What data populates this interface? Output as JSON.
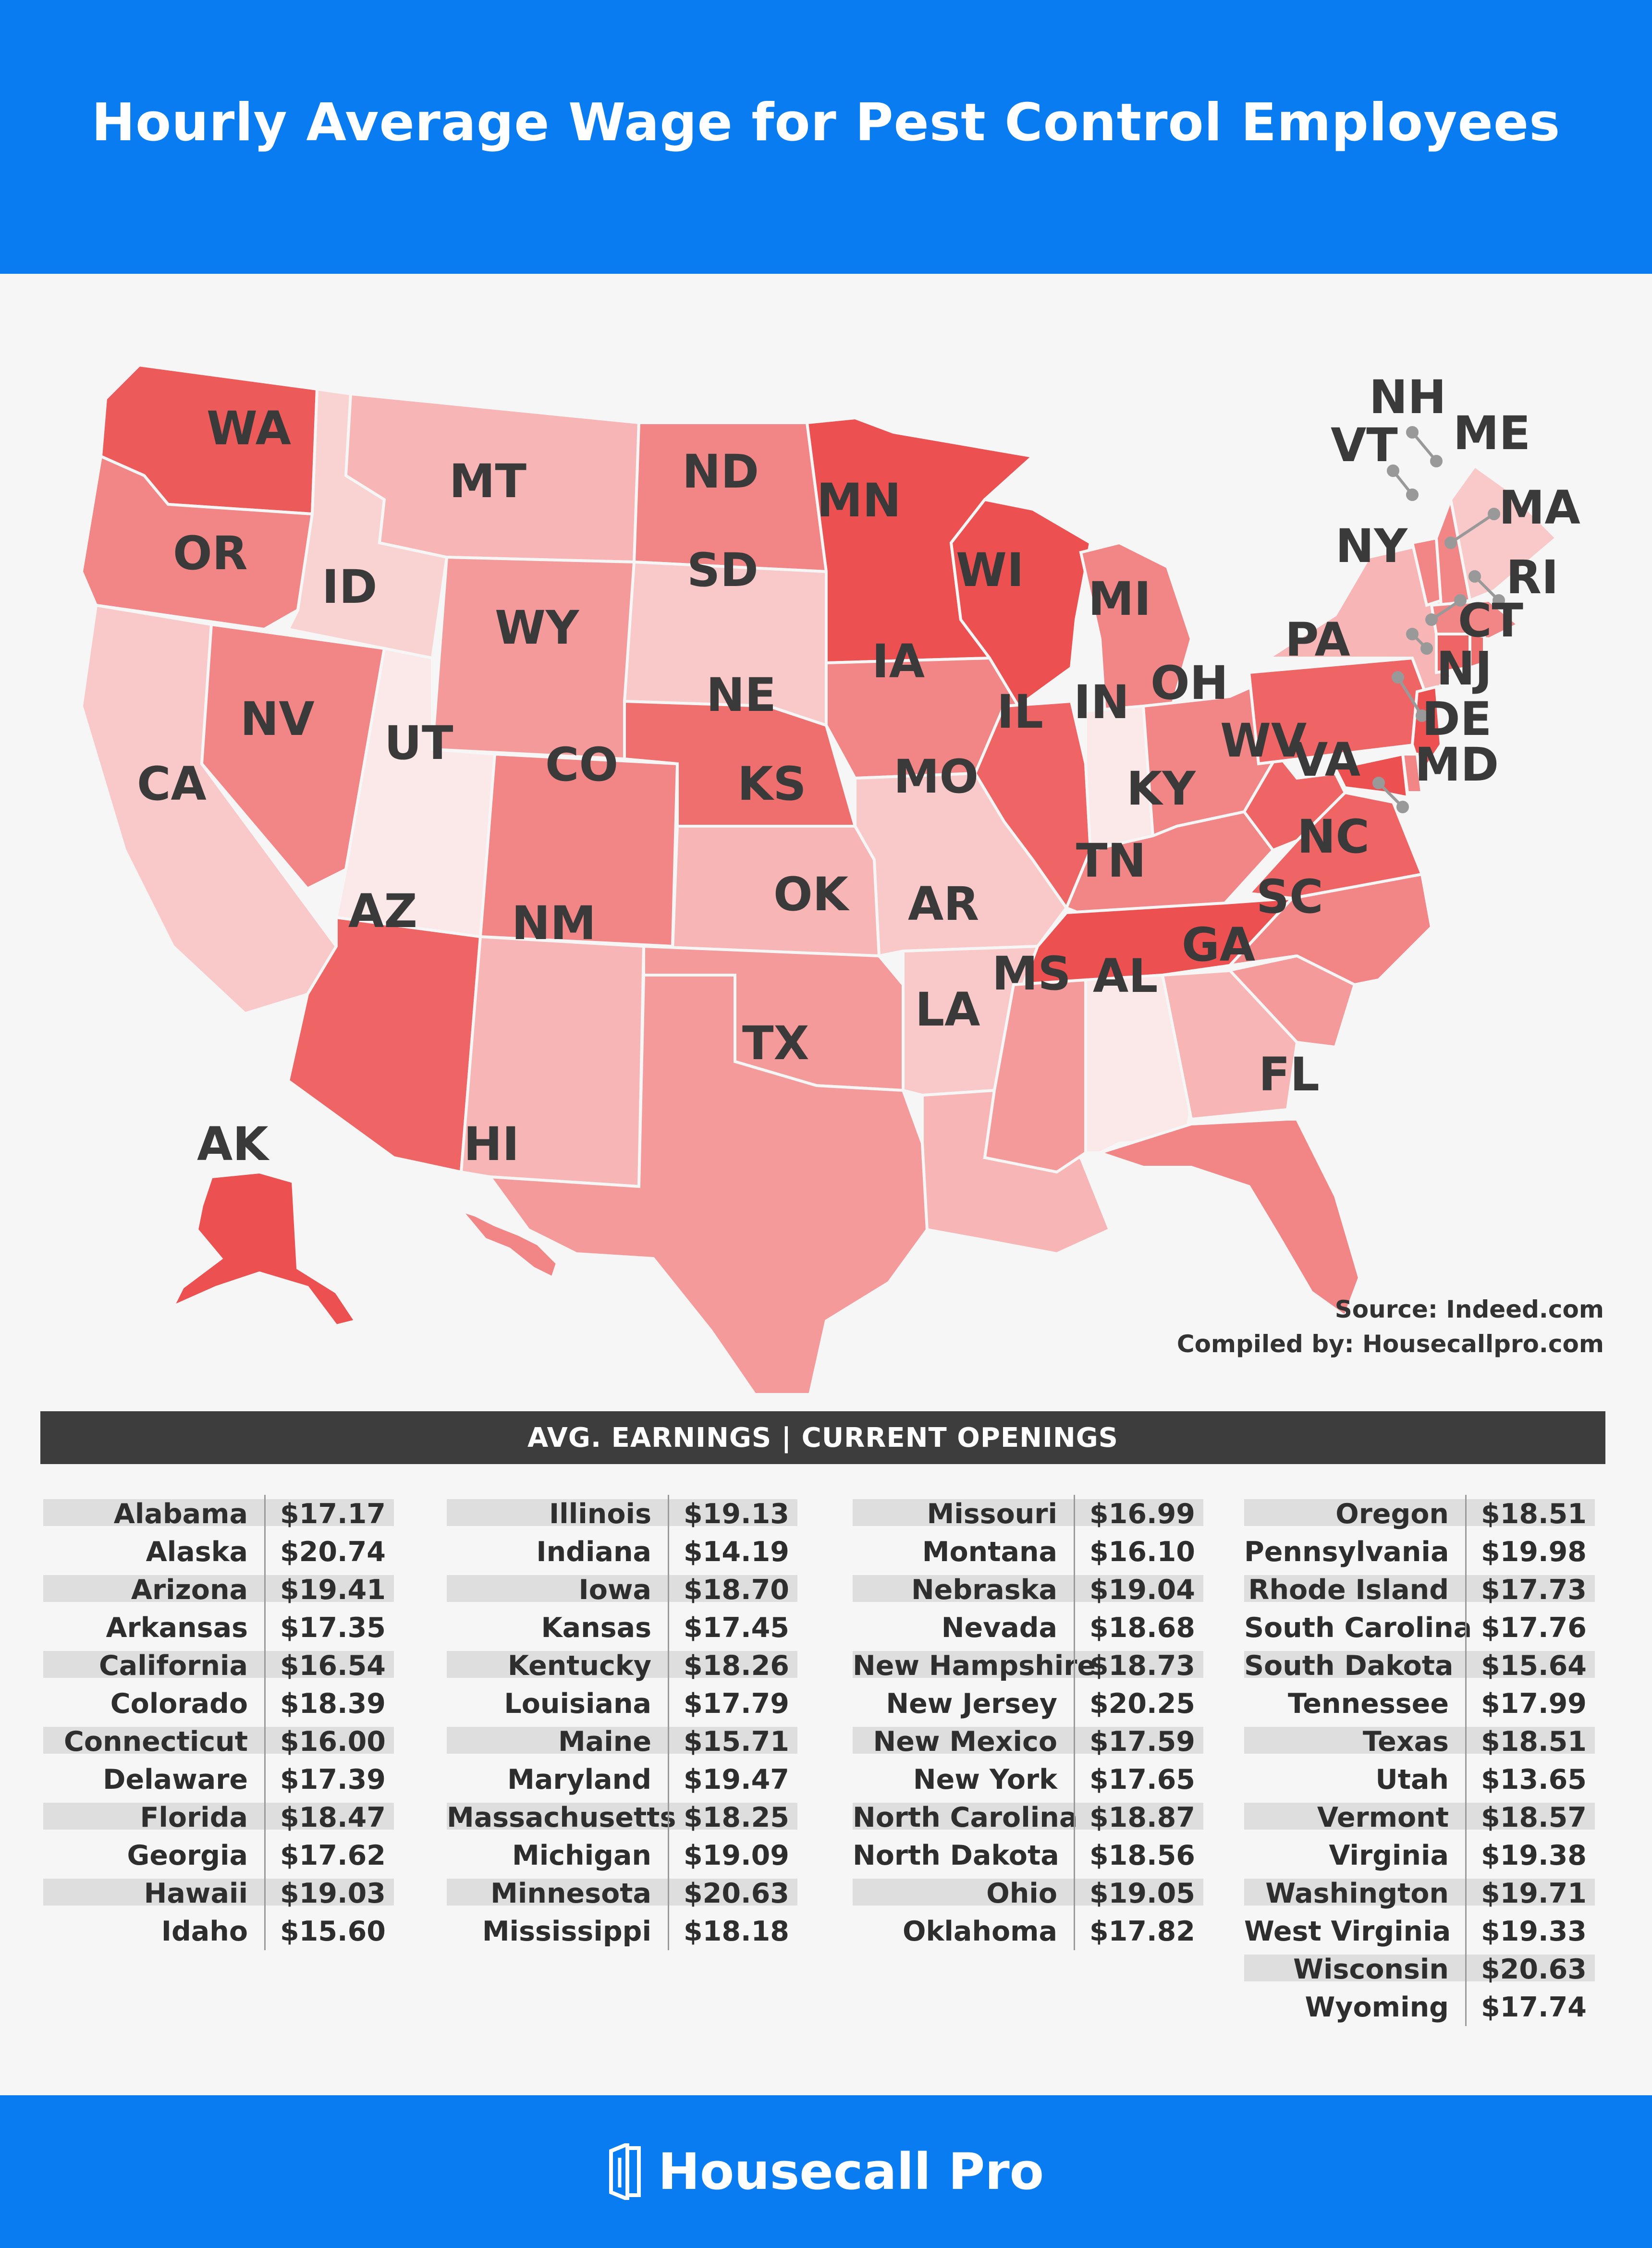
{
  "title": "Hourly Average Wage for Pest Control Employees",
  "map": {
    "labels": {
      "WA": "WA",
      "OR": "OR",
      "CA": "CA",
      "NV": "NV",
      "ID": "ID",
      "MT": "MT",
      "WY": "WY",
      "UT": "UT",
      "AZ": "AZ",
      "CO": "CO",
      "NM": "NM",
      "ND": "ND",
      "SD": "SD",
      "NE": "NE",
      "KS": "KS",
      "OK": "OK",
      "TX": "TX",
      "MN": "MN",
      "IA": "IA",
      "MO": "MO",
      "AR": "AR",
      "LA": "LA",
      "WI": "WI",
      "IL": "IL",
      "MI": "MI",
      "IN": "IN",
      "OH": "OH",
      "KY": "KY",
      "TN": "TN",
      "MS": "MS",
      "AL": "AL",
      "GA": "GA",
      "FL": "FL",
      "SC": "SC",
      "NC": "NC",
      "VA": "VA",
      "WV": "WV",
      "PA": "PA",
      "NY": "NY",
      "VT": "VT",
      "NH": "NH",
      "ME": "ME",
      "MA": "MA",
      "RI": "RI",
      "CT": "CT",
      "NJ": "NJ",
      "DE": "DE",
      "MD": "MD",
      "AK": "AK",
      "HI": "HI"
    },
    "colors": {
      "lightest": "#fbe8e8",
      "light": "#f9c9c9",
      "mid_light": "#f7b5b5",
      "mid": "#f59a9a",
      "mid_dark": "#f28585",
      "dark": "#ef6e6e",
      "darkest": "#ec5050"
    }
  },
  "source": {
    "line1": "Source: Indeed.com",
    "line2": "Compiled by: Housecallpro.com"
  },
  "table": {
    "header": "AVG. EARNINGS | CURRENT OPENINGS",
    "columns": [
      [
        [
          "Alabama",
          "$17.17"
        ],
        [
          "Alaska",
          "$20.74"
        ],
        [
          "Arizona",
          "$19.41"
        ],
        [
          "Arkansas",
          "$17.35"
        ],
        [
          "California",
          "$16.54"
        ],
        [
          "Colorado",
          "$18.39"
        ],
        [
          "Connecticut",
          "$16.00"
        ],
        [
          "Delaware",
          "$17.39"
        ],
        [
          "Florida",
          "$18.47"
        ],
        [
          "Georgia",
          "$17.62"
        ],
        [
          "Hawaii",
          "$19.03"
        ],
        [
          "Idaho",
          "$15.60"
        ]
      ],
      [
        [
          "Illinois",
          "$19.13"
        ],
        [
          "Indiana",
          "$14.19"
        ],
        [
          "Iowa",
          "$18.70"
        ],
        [
          "Kansas",
          "$17.45"
        ],
        [
          "Kentucky",
          "$18.26"
        ],
        [
          "Louisiana",
          "$17.79"
        ],
        [
          "Maine",
          "$15.71"
        ],
        [
          "Maryland",
          "$19.47"
        ],
        [
          "Massachusetts",
          "$18.25"
        ],
        [
          "Michigan",
          "$19.09"
        ],
        [
          "Minnesota",
          "$20.63"
        ],
        [
          "Mississippi",
          "$18.18"
        ]
      ],
      [
        [
          "Missouri",
          "$16.99"
        ],
        [
          "Montana",
          "$16.10"
        ],
        [
          "Nebraska",
          "$19.04"
        ],
        [
          "Nevada",
          "$18.68"
        ],
        [
          "New Hampshire",
          "$18.73"
        ],
        [
          "New Jersey",
          "$20.25"
        ],
        [
          "New Mexico",
          "$17.59"
        ],
        [
          "New York",
          "$17.65"
        ],
        [
          "North Carolina",
          "$18.87"
        ],
        [
          "North Dakota",
          "$18.56"
        ],
        [
          "Ohio",
          "$19.05"
        ],
        [
          "Oklahoma",
          "$17.82"
        ]
      ],
      [
        [
          "Oregon",
          "$18.51"
        ],
        [
          "Pennsylvania",
          "$19.98"
        ],
        [
          "Rhode Island",
          "$17.73"
        ],
        [
          "South Carolina",
          "$17.76"
        ],
        [
          "South Dakota",
          "$15.64"
        ],
        [
          "Tennessee",
          "$17.99"
        ],
        [
          "Texas",
          "$18.51"
        ],
        [
          "Utah",
          "$13.65"
        ],
        [
          "Vermont",
          "$18.57"
        ],
        [
          "Virginia",
          "$19.38"
        ],
        [
          "Washington",
          "$19.71"
        ],
        [
          "West Virginia",
          "$19.33"
        ],
        [
          "Wisconsin",
          "$20.63"
        ],
        [
          "Wyoming",
          "$17.74"
        ]
      ]
    ]
  },
  "footer": {
    "brand": "Housecall Pro"
  }
}
